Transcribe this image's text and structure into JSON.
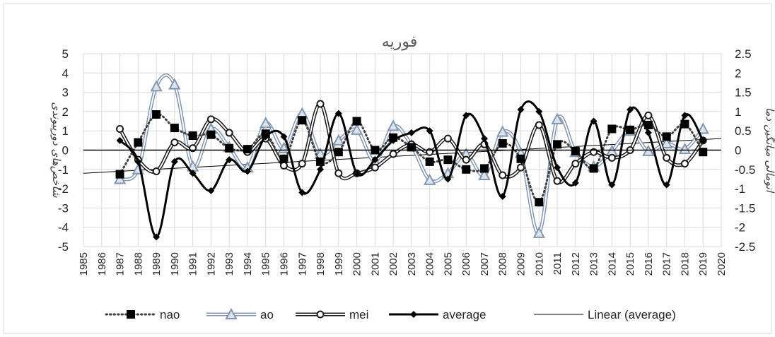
{
  "chart_data": {
    "type": "line",
    "title": "فوریه",
    "ylabel": "شاخص‌های دورپیوندی",
    "y2label": "آنومالی میانگین دما",
    "xlim": [
      1985,
      2020
    ],
    "ylim": [
      -5,
      5
    ],
    "y2lim": [
      -2.5,
      2.5
    ],
    "x_ticks": [
      1985,
      1986,
      1987,
      1988,
      1989,
      1990,
      1991,
      1992,
      1993,
      1994,
      1995,
      1996,
      1997,
      1998,
      1999,
      2000,
      2001,
      2002,
      2003,
      2004,
      2005,
      2006,
      2007,
      2008,
      2009,
      2010,
      2011,
      2012,
      2013,
      2014,
      2015,
      2016,
      2017,
      2018,
      2019,
      2020
    ],
    "y_ticks": [
      5,
      4,
      3,
      2,
      1,
      0,
      -1,
      -2,
      -3,
      -4,
      -5
    ],
    "y2_ticks": [
      "2.5",
      "2",
      "1.5",
      "1",
      "0.5",
      "0",
      "-0.5",
      "-1",
      "-1.5",
      "-2",
      "-2.5"
    ],
    "x": [
      1987,
      1988,
      1989,
      1990,
      1991,
      1992,
      1993,
      1994,
      1995,
      1996,
      1997,
      1998,
      1999,
      2000,
      2001,
      2002,
      2003,
      2004,
      2005,
      2006,
      2007,
      2008,
      2009,
      2010,
      2011,
      2012,
      2013,
      2014,
      2015,
      2016,
      2017,
      2018,
      2019
    ],
    "grid": true,
    "legend_position": "bottom",
    "series": [
      {
        "name": "nao",
        "axis": "left",
        "style": "dotted-square",
        "color": "#404040",
        "values": [
          -1.25,
          0.4,
          1.85,
          1.15,
          0.75,
          0.8,
          0.1,
          0.05,
          0.85,
          -0.45,
          1.55,
          -0.6,
          -0.1,
          1.5,
          0.0,
          0.65,
          0.15,
          -0.6,
          -0.5,
          -1.0,
          -0.95,
          0.35,
          -0.45,
          -2.7,
          0.3,
          -0.05,
          -0.95,
          1.1,
          1.05,
          1.3,
          0.7,
          1.35,
          -0.1
        ]
      },
      {
        "name": "ao",
        "axis": "left",
        "style": "double-triangle",
        "color": "#8497b0",
        "values": [
          -1.5,
          -1.0,
          3.3,
          3.4,
          -0.85,
          1.1,
          0.15,
          -0.9,
          1.4,
          0.1,
          1.9,
          -0.2,
          0.5,
          1.05,
          -0.6,
          1.25,
          0.25,
          -1.55,
          -1.2,
          -0.2,
          -1.3,
          0.95,
          -0.15,
          -4.3,
          1.6,
          -0.1,
          -0.85,
          -0.05,
          1.0,
          -0.05,
          0.35,
          0.05,
          1.1
        ]
      },
      {
        "name": "mei",
        "axis": "right",
        "style": "double-circle",
        "color": "#1a1a1a",
        "values": [
          0.55,
          -0.25,
          -0.55,
          0.2,
          0.05,
          0.8,
          0.45,
          -0.05,
          0.3,
          -0.4,
          -0.35,
          1.2,
          -0.6,
          -0.6,
          -0.45,
          -0.1,
          0.15,
          -0.05,
          0.3,
          -0.25,
          0.15,
          -0.65,
          -0.45,
          0.65,
          -0.8,
          -0.35,
          -0.05,
          -0.2,
          0.0,
          0.9,
          -0.2,
          -0.35,
          0.25
        ]
      },
      {
        "name": "average",
        "axis": "right",
        "style": "bold-diamond",
        "color": "#000000",
        "values": [
          0.25,
          -0.3,
          -2.25,
          -0.3,
          -0.6,
          -1.05,
          -0.25,
          -0.55,
          0.35,
          0.35,
          -1.1,
          -0.5,
          0.95,
          -0.6,
          -0.25,
          0.25,
          0.45,
          0.5,
          -0.75,
          0.9,
          0.3,
          -1.2,
          1.05,
          1.0,
          -0.45,
          -0.85,
          0.75,
          -0.9,
          1.05,
          0.45,
          -0.9,
          0.9,
          0.25
        ]
      },
      {
        "name": "Linear (average)",
        "axis": "right",
        "style": "thin-line",
        "color": "#000000",
        "x": [
          1985,
          2020
        ],
        "values": [
          -0.6,
          0.3
        ]
      }
    ]
  }
}
